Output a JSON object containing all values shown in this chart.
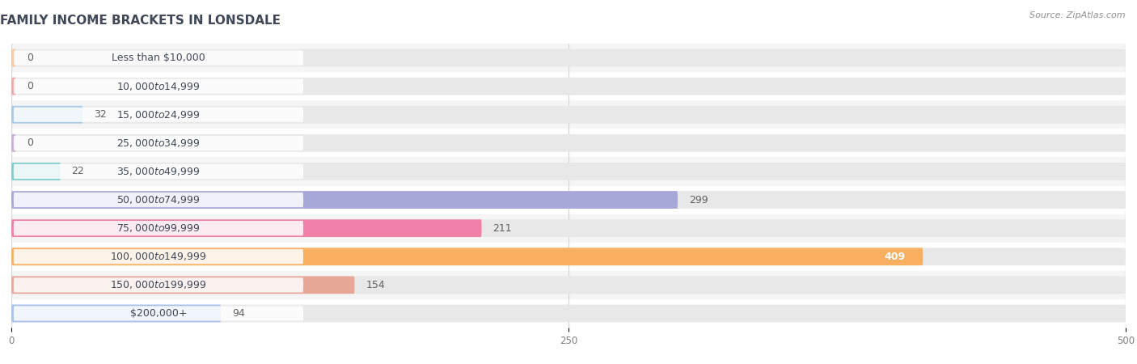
{
  "title": "Family Income Brackets in Lonsdale",
  "source": "Source: ZipAtlas.com",
  "categories": [
    "Less than $10,000",
    "$10,000 to $14,999",
    "$15,000 to $24,999",
    "$25,000 to $34,999",
    "$35,000 to $49,999",
    "$50,000 to $74,999",
    "$75,000 to $99,999",
    "$100,000 to $149,999",
    "$150,000 to $199,999",
    "$200,000+"
  ],
  "values": [
    0,
    0,
    32,
    0,
    22,
    299,
    211,
    409,
    154,
    94
  ],
  "bar_colors": [
    "#f5c9a0",
    "#f0a8a8",
    "#a8c8e8",
    "#c8b0d8",
    "#7ecece",
    "#a8a8d8",
    "#f080a8",
    "#f8b060",
    "#e8a898",
    "#a8c0f0"
  ],
  "background_color": "#ffffff",
  "row_bg_colors": [
    "#f5f5f5",
    "#ffffff"
  ],
  "bar_bg_color": "#e8e8e8",
  "grid_color": "#d8d8d8",
  "label_text_color": "#404858",
  "value_text_color_dark": "#606060",
  "value_text_color_light": "#ffffff",
  "title_color": "#404858",
  "source_color": "#909090",
  "xlim": [
    0,
    500
  ],
  "xticks": [
    0,
    250,
    500
  ],
  "title_fontsize": 11,
  "label_fontsize": 9,
  "value_fontsize": 9,
  "source_fontsize": 8
}
